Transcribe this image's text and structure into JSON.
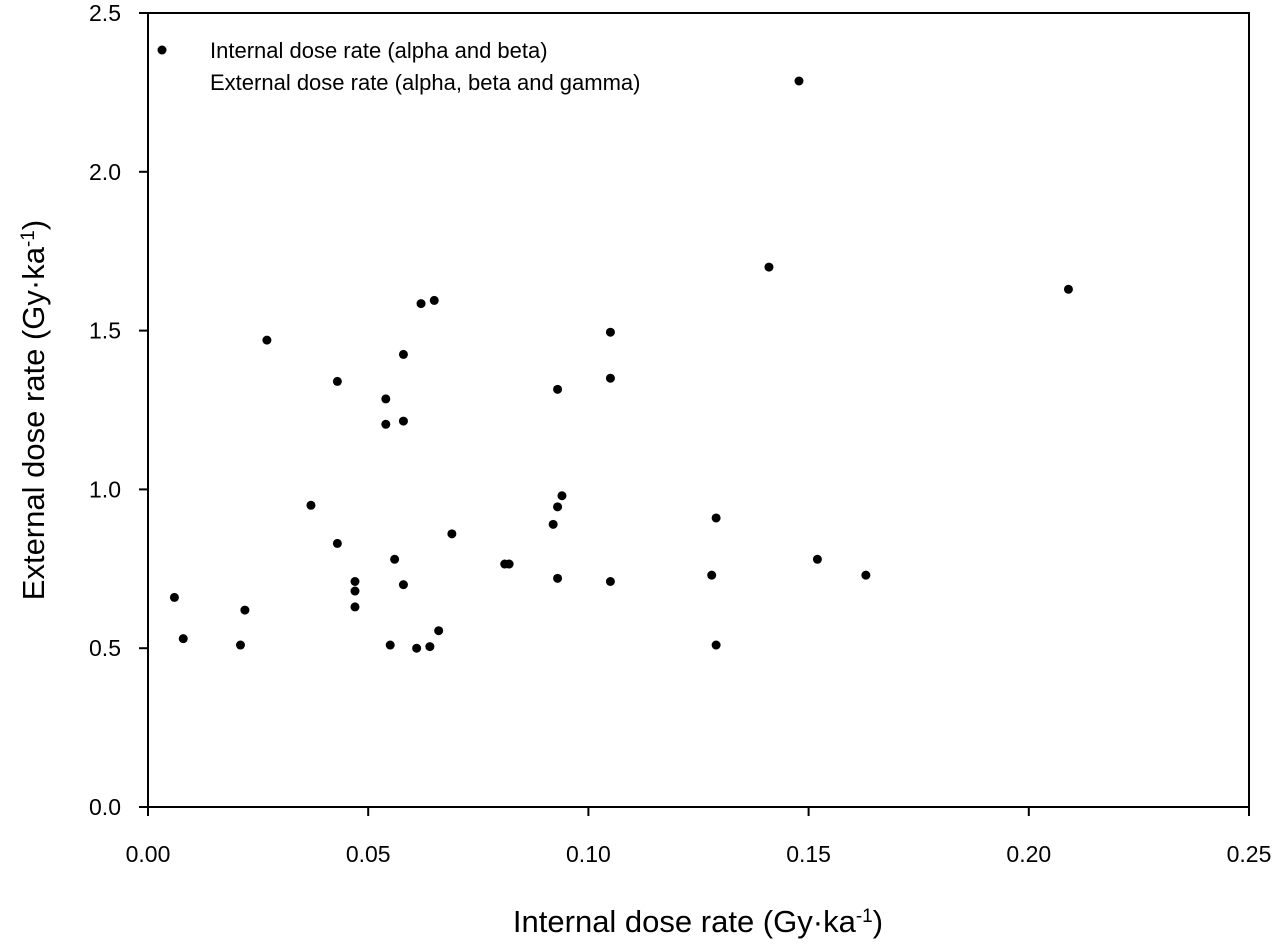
{
  "chart_data": {
    "type": "scatter",
    "title": "",
    "xlabel": {
      "main": "Internal dose rate (Gy",
      "dot": "·",
      "unit": "ka",
      "sup": "-1",
      "close": ")"
    },
    "ylabel": {
      "main": "External dose rate (Gy",
      "dot": "·",
      "unit": "ka",
      "sup": "-1",
      "close": ")"
    },
    "xlim": [
      0,
      0.25
    ],
    "ylim": [
      0,
      2.5
    ],
    "x_ticks": [
      "0.00",
      "0.05",
      "0.10",
      "0.15",
      "0.20",
      "0.25"
    ],
    "y_ticks": [
      "0.0",
      "0.5",
      "1.0",
      "1.5",
      "2.0",
      "2.5"
    ],
    "grid": false,
    "legend_position": "top-left",
    "legend": [
      {
        "label": "Internal dose rate (alpha and beta)",
        "marker": "left"
      },
      {
        "label": "External dose rate (alpha, beta and gamma)",
        "marker": "right"
      }
    ],
    "marker_color": "#000000",
    "series": [
      {
        "points": [
          [
            0.006,
            0.66
          ],
          [
            0.008,
            0.53
          ],
          [
            0.021,
            0.51
          ],
          [
            0.022,
            0.62
          ],
          [
            0.027,
            1.47
          ],
          [
            0.037,
            0.95
          ],
          [
            0.043,
            1.34
          ],
          [
            0.043,
            0.83
          ],
          [
            0.047,
            0.71
          ],
          [
            0.047,
            0.68
          ],
          [
            0.047,
            0.63
          ],
          [
            0.054,
            1.285
          ],
          [
            0.054,
            1.205
          ],
          [
            0.055,
            0.51
          ],
          [
            0.056,
            0.78
          ],
          [
            0.058,
            1.425
          ],
          [
            0.058,
            1.215
          ],
          [
            0.058,
            0.7
          ],
          [
            0.061,
            0.5
          ],
          [
            0.062,
            1.585
          ],
          [
            0.064,
            0.505
          ],
          [
            0.065,
            1.595
          ],
          [
            0.066,
            0.555
          ],
          [
            0.069,
            0.86
          ],
          [
            0.081,
            0.765
          ],
          [
            0.082,
            0.765
          ],
          [
            0.092,
            0.89
          ],
          [
            0.093,
            1.315
          ],
          [
            0.093,
            0.945
          ],
          [
            0.093,
            0.72
          ],
          [
            0.094,
            0.98
          ],
          [
            0.105,
            1.495
          ],
          [
            0.105,
            1.35
          ],
          [
            0.105,
            0.71
          ],
          [
            0.128,
            0.73
          ],
          [
            0.129,
            0.91
          ],
          [
            0.129,
            0.51
          ],
          [
            0.141,
            1.7
          ],
          [
            0.152,
            0.78
          ],
          [
            0.163,
            0.73
          ],
          [
            0.209,
            1.63
          ]
        ]
      }
    ]
  }
}
